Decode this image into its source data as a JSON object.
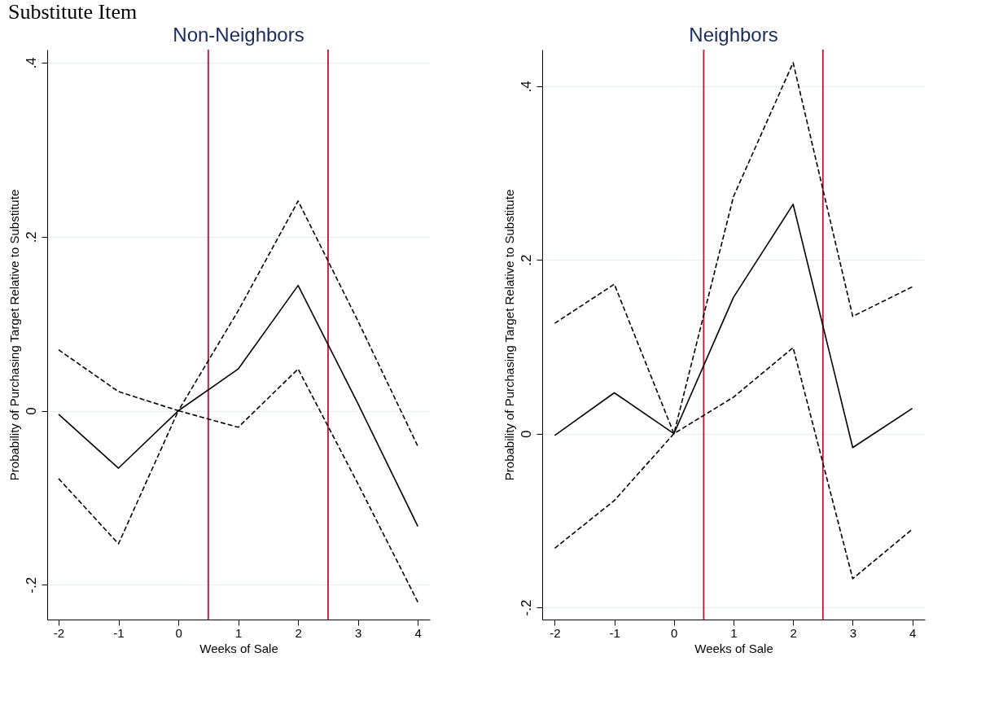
{
  "chart_data": [
    {
      "type": "line",
      "title": "Substitute Item",
      "subtitle": "Non-Neighbors",
      "xlabel": "Weeks of Sale",
      "ylabel": "Probability of Purchasing Target Relative to Substitute",
      "x": [
        -2,
        -1,
        0,
        1,
        2,
        3,
        4
      ],
      "series": [
        {
          "color": "#000000",
          "line_style": "solid",
          "values": [
            -0.004,
            -0.066,
            0,
            0.048,
            0.144,
            0.008,
            -0.133
          ]
        },
        {
          "color": "#000000",
          "line_style": "dashed",
          "values": [
            0.07,
            0.022,
            0,
            0.115,
            0.241,
            0.103,
            -0.041
          ]
        },
        {
          "color": "#000000",
          "line_style": "dashed",
          "values": [
            -0.078,
            -0.153,
            0,
            -0.019,
            0.048,
            -0.084,
            -0.22
          ]
        }
      ],
      "xlim": [
        -2.19,
        4.2
      ],
      "xticks": [
        -2,
        -1,
        0,
        1,
        2,
        3,
        4
      ],
      "ylim": [
        -0.24,
        0.415
      ],
      "yticks": [
        {
          "value": -0.2,
          "label": "-.2"
        },
        0,
        {
          "value": 0.2,
          "label": ".2"
        },
        {
          "value": 0.4,
          "label": ".4"
        }
      ],
      "grid": "y",
      "ref_lines": [
        {
          "axis": "x",
          "value": 0.5,
          "color": "#c8102e"
        },
        {
          "axis": "x",
          "value": 2.5,
          "color": "#c8102e"
        }
      ]
    },
    {
      "type": "line",
      "subtitle": "Neighbors",
      "xlabel": "Weeks of Sale",
      "ylabel": "Probability of Purchasing Target Relative to Substitute",
      "x": [
        -2,
        -1,
        0,
        1,
        2,
        3,
        4
      ],
      "series": [
        {
          "color": "#000000",
          "line_style": "solid",
          "values": [
            -0.002,
            0.047,
            0,
            0.157,
            0.264,
            -0.016,
            0.029
          ]
        },
        {
          "color": "#000000",
          "line_style": "dashed",
          "values": [
            0.127,
            0.172,
            0,
            0.273,
            0.427,
            0.135,
            0.169
          ]
        },
        {
          "color": "#000000",
          "line_style": "dashed",
          "values": [
            -0.132,
            -0.077,
            0,
            0.042,
            0.099,
            -0.167,
            -0.11
          ]
        }
      ],
      "xlim": [
        -2.21,
        4.21
      ],
      "xticks": [
        -2,
        -1,
        0,
        1,
        2,
        3,
        4
      ],
      "ylim": [
        -0.214,
        0.442
      ],
      "yticks": [
        {
          "value": -0.2,
          "label": "-.2"
        },
        0,
        {
          "value": 0.2,
          "label": ".2"
        },
        {
          "value": 0.4,
          "label": ".4"
        }
      ],
      "grid": "y",
      "ref_lines": [
        {
          "axis": "x",
          "value": 0.5,
          "color": "#c8102e"
        },
        {
          "axis": "x",
          "value": 2.5,
          "color": "#c8102e"
        }
      ]
    }
  ]
}
